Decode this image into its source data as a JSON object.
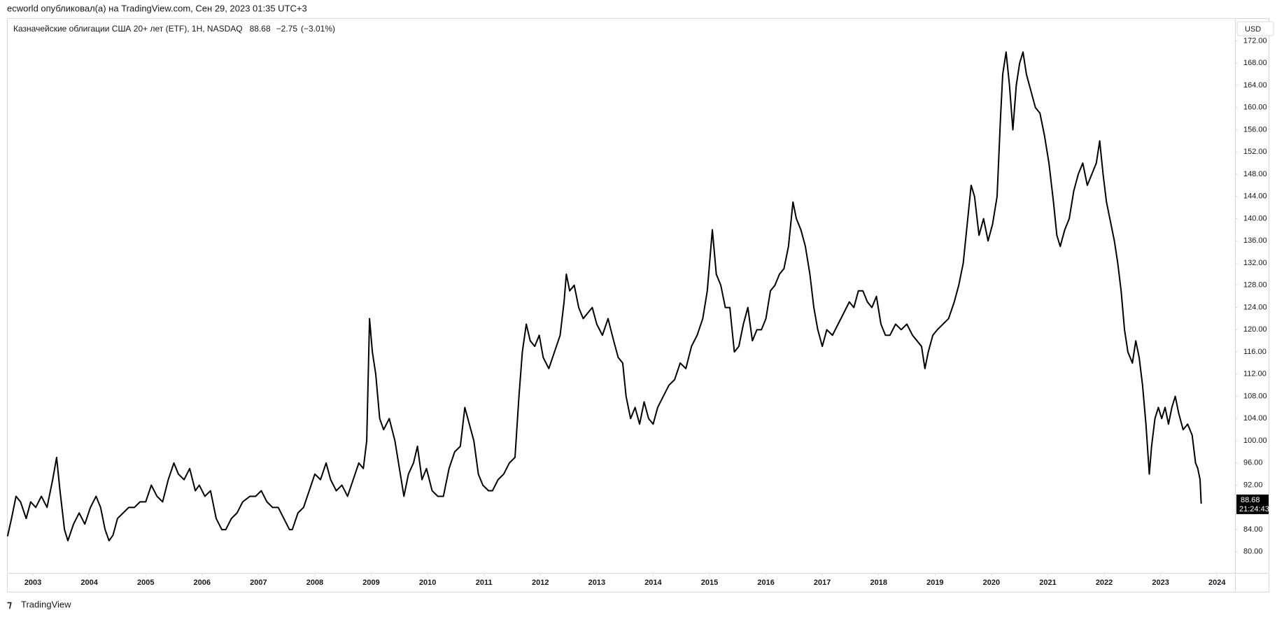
{
  "header": {
    "publisher": "ecworld опубликовал(а) на TradingView.com, Сен 29, 2023 01:35 UTC+3"
  },
  "footer": {
    "brand": "TradingView"
  },
  "chart_data": {
    "type": "line",
    "title": "Казначейские облигации США 20+ лет (ETF), 1H, NASDAQ",
    "change": "−2.75",
    "change_pct": "(−3.01%)",
    "currency": "USD",
    "countdown": "21:24:43",
    "grid": false,
    "xlim": [
      2002.54,
      2024.32
    ],
    "xticks": [
      2003,
      2004,
      2005,
      2006,
      2007,
      2008,
      2009,
      2010,
      2011,
      2012,
      2013,
      2014,
      2015,
      2016,
      2017,
      2018,
      2019,
      2020,
      2021,
      2022,
      2023,
      2024
    ],
    "ylim": [
      76.2,
      176.1
    ],
    "yticks": [
      {
        "value": 80,
        "label": "80.00"
      },
      {
        "value": 84,
        "label": "84.00"
      },
      {
        "value": 88,
        "label": "88.00"
      },
      {
        "value": 92,
        "label": "92.00"
      },
      {
        "value": 96,
        "label": "96.00"
      },
      {
        "value": 100,
        "label": "100.00"
      },
      {
        "value": 104,
        "label": "104.00"
      },
      {
        "value": 108,
        "label": "108.00"
      },
      {
        "value": 112,
        "label": "112.00"
      },
      {
        "value": 116,
        "label": "116.00"
      },
      {
        "value": 120,
        "label": "120.00"
      },
      {
        "value": 124,
        "label": "124.00"
      },
      {
        "value": 128,
        "label": "128.00"
      },
      {
        "value": 132,
        "label": "132.00"
      },
      {
        "value": 136,
        "label": "136.00"
      },
      {
        "value": 140,
        "label": "140.00"
      },
      {
        "value": 144,
        "label": "144.00"
      },
      {
        "value": 148,
        "label": "148.00"
      },
      {
        "value": 152,
        "label": "152.00"
      },
      {
        "value": 156,
        "label": "156.00"
      },
      {
        "value": 160,
        "label": "160.00"
      },
      {
        "value": 164,
        "label": "164.00"
      },
      {
        "value": 168,
        "label": "168.00"
      },
      {
        "value": 172,
        "label": "172.00"
      }
    ],
    "x": [
      2002.55,
      2002.62,
      2002.7,
      2002.78,
      2002.88,
      2002.96,
      2003.05,
      2003.15,
      2003.25,
      2003.35,
      2003.42,
      2003.48,
      2003.56,
      2003.62,
      2003.72,
      2003.82,
      2003.92,
      2004.02,
      2004.12,
      2004.2,
      2004.28,
      2004.35,
      2004.42,
      2004.5,
      2004.6,
      2004.7,
      2004.8,
      2004.9,
      2005.0,
      2005.1,
      2005.2,
      2005.3,
      2005.4,
      2005.5,
      2005.58,
      2005.68,
      2005.78,
      2005.88,
      2005.95,
      2006.05,
      2006.15,
      2006.25,
      2006.35,
      2006.42,
      2006.52,
      2006.62,
      2006.72,
      2006.85,
      2006.95,
      2007.05,
      2007.15,
      2007.25,
      2007.35,
      2007.45,
      2007.55,
      2007.6,
      2007.7,
      2007.8,
      2007.9,
      2008.0,
      2008.1,
      2008.2,
      2008.28,
      2008.38,
      2008.48,
      2008.58,
      2008.68,
      2008.78,
      2008.86,
      2008.92,
      2008.97,
      2009.02,
      2009.08,
      2009.15,
      2009.22,
      2009.32,
      2009.42,
      2009.5,
      2009.58,
      2009.66,
      2009.75,
      2009.82,
      2009.9,
      2009.98,
      2010.08,
      2010.18,
      2010.28,
      2010.38,
      2010.48,
      2010.58,
      2010.66,
      2010.74,
      2010.82,
      2010.9,
      2010.98,
      2011.08,
      2011.15,
      2011.25,
      2011.35,
      2011.45,
      2011.55,
      2011.62,
      2011.68,
      2011.75,
      2011.82,
      2011.9,
      2011.98,
      2012.05,
      2012.15,
      2012.25,
      2012.35,
      2012.42,
      2012.46,
      2012.52,
      2012.6,
      2012.68,
      2012.76,
      2012.84,
      2012.92,
      2013.0,
      2013.1,
      2013.2,
      2013.3,
      2013.38,
      2013.46,
      2013.52,
      2013.6,
      2013.68,
      2013.76,
      2013.84,
      2013.92,
      2014.0,
      2014.08,
      2014.18,
      2014.28,
      2014.38,
      2014.48,
      2014.58,
      2014.68,
      2014.78,
      2014.88,
      2014.96,
      2015.05,
      2015.12,
      2015.2,
      2015.28,
      2015.36,
      2015.44,
      2015.52,
      2015.6,
      2015.68,
      2015.76,
      2015.84,
      2015.92,
      2016.0,
      2016.08,
      2016.16,
      2016.24,
      2016.32,
      2016.4,
      2016.48,
      2016.54,
      2016.62,
      2016.7,
      2016.78,
      2016.85,
      2016.92,
      2017.0,
      2017.08,
      2017.18,
      2017.28,
      2017.38,
      2017.48,
      2017.56,
      2017.64,
      2017.72,
      2017.8,
      2017.88,
      2017.96,
      2018.04,
      2018.12,
      2018.2,
      2018.3,
      2018.4,
      2018.5,
      2018.6,
      2018.68,
      2018.76,
      2018.82,
      2018.88,
      2018.96,
      2019.04,
      2019.14,
      2019.24,
      2019.34,
      2019.42,
      2019.5,
      2019.58,
      2019.64,
      2019.7,
      2019.78,
      2019.86,
      2019.94,
      2020.02,
      2020.1,
      2020.16,
      2020.2,
      2020.26,
      2020.32,
      2020.38,
      2020.44,
      2020.5,
      2020.56,
      2020.62,
      2020.7,
      2020.78,
      2020.86,
      2020.94,
      2021.02,
      2021.1,
      2021.16,
      2021.22,
      2021.3,
      2021.38,
      2021.46,
      2021.54,
      2021.62,
      2021.7,
      2021.78,
      2021.86,
      2021.92,
      2021.98,
      2022.04,
      2022.1,
      2022.18,
      2022.24,
      2022.3,
      2022.36,
      2022.42,
      2022.5,
      2022.56,
      2022.62,
      2022.68,
      2022.74,
      2022.8,
      2022.84,
      2022.9,
      2022.96,
      2023.02,
      2023.08,
      2023.14,
      2023.2,
      2023.26,
      2023.32,
      2023.4,
      2023.48,
      2023.56,
      2023.62,
      2023.66,
      2023.7,
      2023.72
    ],
    "series": [
      {
        "color": "#000000",
        "values": [
          82.8,
          86,
          90,
          89,
          86,
          89,
          88,
          90,
          88,
          93,
          97,
          91,
          84,
          82,
          85,
          87,
          85,
          88,
          90,
          88,
          84,
          82,
          83,
          86,
          87,
          88,
          88,
          89,
          89,
          92,
          90,
          89,
          93,
          96,
          94,
          93,
          95,
          91,
          92,
          90,
          91,
          86,
          84,
          84,
          86,
          87,
          89,
          90,
          90,
          91,
          89,
          88,
          88,
          86,
          84,
          84,
          87,
          88,
          91,
          94,
          93,
          96,
          93,
          91,
          92,
          90,
          93,
          96,
          95,
          100,
          122,
          116,
          112,
          104,
          102,
          104,
          100,
          95,
          90,
          94,
          96,
          99,
          93,
          95,
          91,
          90,
          90,
          95,
          98,
          99,
          106,
          103,
          100,
          94,
          92,
          91,
          91,
          93,
          94,
          96,
          97,
          108,
          116,
          121,
          118,
          117,
          119,
          115,
          113,
          116,
          119,
          125,
          130,
          127,
          128,
          124,
          122,
          123,
          124,
          121,
          119,
          122,
          118,
          115,
          114,
          108,
          104,
          106,
          103,
          107,
          104,
          103,
          106,
          108,
          110,
          111,
          114,
          113,
          117,
          119,
          122,
          127,
          138,
          130,
          128,
          124,
          124,
          116,
          117,
          121,
          124,
          118,
          120,
          120,
          122,
          127,
          128,
          130,
          131,
          135,
          143,
          140,
          138,
          135,
          130,
          124,
          120,
          117,
          120,
          119,
          121,
          123,
          125,
          124,
          127,
          127,
          125,
          124,
          126,
          121,
          119,
          119,
          121,
          120,
          121,
          119,
          118,
          117,
          113,
          116,
          119,
          120,
          121,
          122,
          125,
          128,
          132,
          140,
          146,
          144,
          137,
          140,
          136,
          139,
          144,
          158,
          166,
          170,
          164,
          156,
          164,
          168,
          170,
          166,
          163,
          160,
          159,
          155,
          150,
          143,
          137,
          135,
          138,
          140,
          145,
          148,
          150,
          146,
          148,
          150,
          154,
          148,
          143,
          140,
          136,
          132,
          127,
          120,
          116,
          114,
          118,
          115,
          110,
          103,
          94,
          99,
          104,
          106,
          104,
          106,
          103,
          106,
          108,
          105,
          102,
          103,
          101,
          96,
          95,
          93,
          88.68
        ]
      }
    ]
  }
}
